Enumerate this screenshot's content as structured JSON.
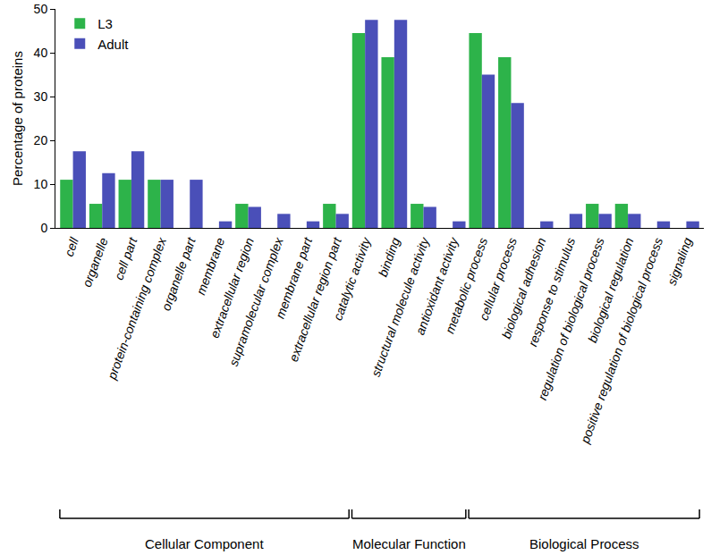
{
  "chart_data": {
    "type": "bar",
    "y_label": "Percentage of proteins",
    "categories": [
      "cell",
      "organelle",
      "cell part",
      "protein-containing complex",
      "organelle part",
      "membrane",
      "extracellular region",
      "supramolecular complex",
      "membrane part",
      "extracellular region part",
      "catalytic activity",
      "binding",
      "structural molecule activity",
      "antioxidant activity",
      "metabolic process",
      "cellular process",
      "biological adhesion",
      "response to stimulus",
      "regulation of biological process",
      "biological regulation",
      "positive regulation of biological process",
      "signaling"
    ],
    "series": [
      {
        "name": "L3",
        "color": "#2db34a",
        "values": [
          11,
          5.5,
          11,
          11,
          0,
          0,
          5.5,
          0,
          0,
          5.5,
          44.5,
          39,
          5.5,
          0,
          44.5,
          39,
          0,
          0,
          5.5,
          5.5,
          0,
          0
        ]
      },
      {
        "name": "Adult",
        "color": "#4a4fb8",
        "values": [
          17.5,
          12.5,
          17.5,
          11,
          11,
          1.5,
          4.8,
          3.2,
          1.5,
          3.2,
          47.5,
          47.5,
          4.8,
          1.5,
          35,
          28.5,
          1.5,
          3.2,
          3.2,
          3.2,
          1.5,
          1.5
        ]
      }
    ],
    "annotations": [
      {
        "text": "Cellular Component",
        "from": "cell",
        "to": "extracellular region part"
      },
      {
        "text": "Molecular Function",
        "from": "catalytic activity",
        "to": "antioxidant activity"
      },
      {
        "text": "Biological Process",
        "from": "metabolic process",
        "to": "signaling"
      }
    ],
    "ylim": [
      0,
      50
    ],
    "yticks": [
      0,
      10,
      20,
      30,
      40,
      50
    ],
    "grid": false,
    "legend": "upper left"
  }
}
